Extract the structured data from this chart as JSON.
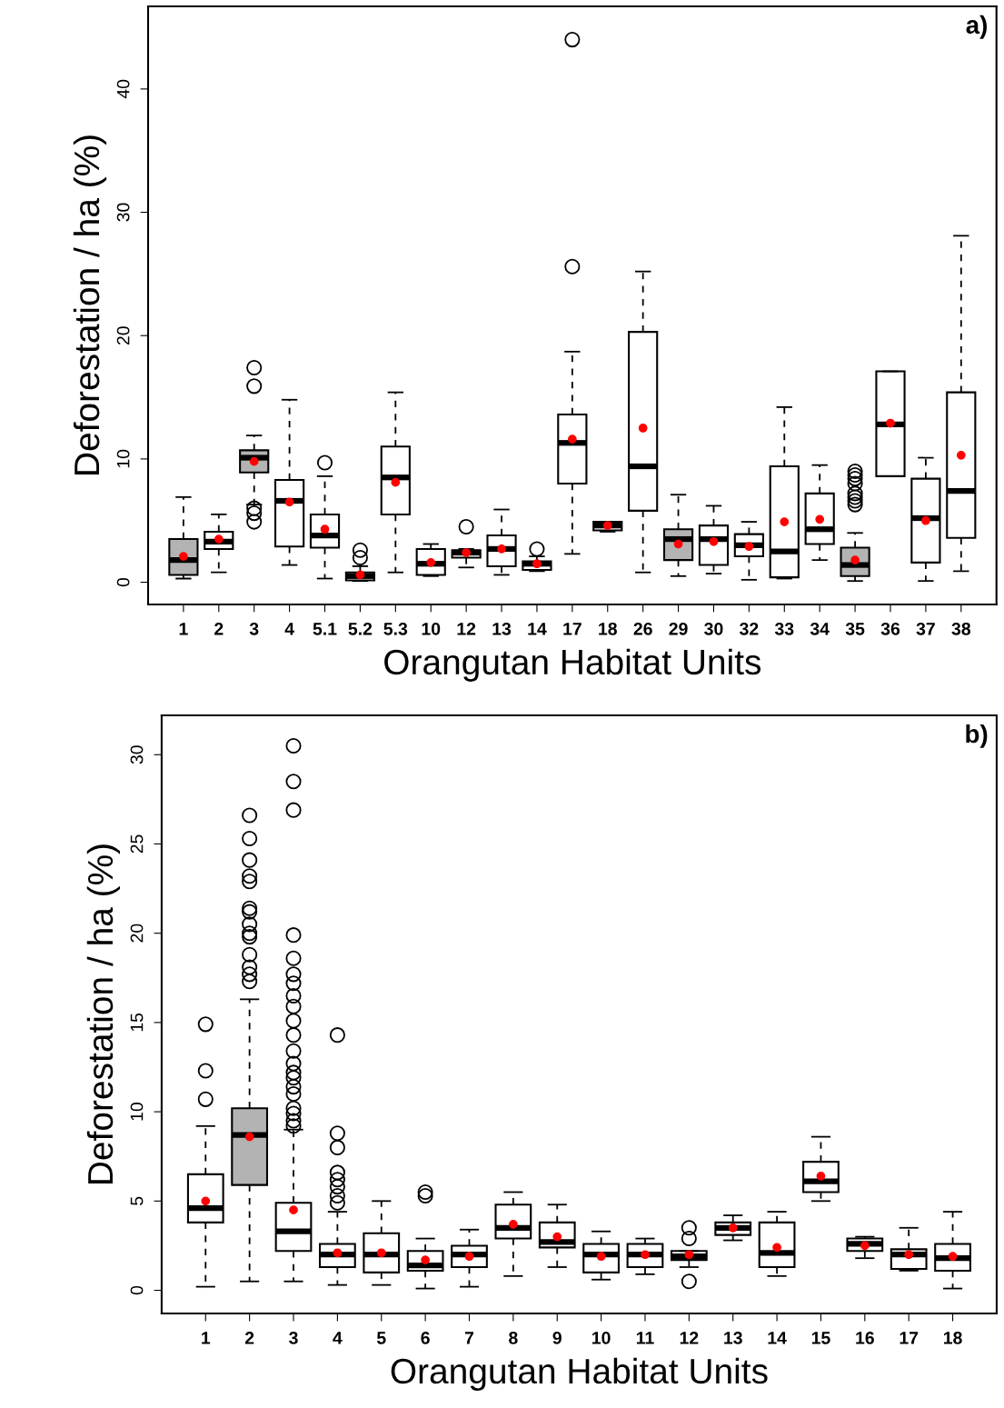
{
  "chart_data": [
    {
      "type": "box",
      "xlabel": "Orangutan Habitat Units",
      "ylabel": "Deforestation / ha (%)",
      "annotations": [
        "a)"
      ],
      "grid": false,
      "ylim": [
        -1.8,
        46.7
      ],
      "yticks": [
        0,
        10,
        20,
        30,
        40
      ],
      "categories": [
        "1",
        "2",
        "3",
        "4",
        "5.1",
        "5.2",
        "5.3",
        "10",
        "12",
        "13",
        "14",
        "17",
        "18",
        "26",
        "29",
        "30",
        "32",
        "33",
        "34",
        "35",
        "36",
        "37",
        "38"
      ],
      "colors": [
        "#b3b3b3",
        "#ffffff",
        "#b3b3b3",
        "#ffffff",
        "#ffffff",
        "#ffffff",
        "#ffffff",
        "#ffffff",
        "#ffffff",
        "#ffffff",
        "#ffffff",
        "#ffffff",
        "#ffffff",
        "#ffffff",
        "#b3b3b3",
        "#ffffff",
        "#ffffff",
        "#ffffff",
        "#ffffff",
        "#b3b3b3",
        "#ffffff",
        "#ffffff",
        "#ffffff"
      ],
      "boxes": [
        {
          "low": 0.3,
          "q1": 0.6,
          "median": 1.8,
          "q3": 3.5,
          "high": 6.9,
          "mean": 2.1
        },
        {
          "low": 0.8,
          "q1": 2.7,
          "median": 3.3,
          "q3": 4.1,
          "high": 5.5,
          "mean": 3.5
        },
        {
          "low": 6.3,
          "q1": 8.9,
          "median": 10.1,
          "q3": 10.7,
          "high": 11.9,
          "mean": 9.8,
          "outliers": [
            17.4,
            15.9,
            6.0,
            5.6,
            4.9
          ]
        },
        {
          "low": 1.4,
          "q1": 2.9,
          "median": 6.6,
          "q3": 8.3,
          "high": 14.8,
          "mean": 6.5
        },
        {
          "low": 0.3,
          "q1": 2.8,
          "median": 3.8,
          "q3": 5.5,
          "high": 8.6,
          "mean": 4.3,
          "outliers": [
            9.7
          ]
        },
        {
          "low": 0.1,
          "q1": 0.15,
          "median": 0.5,
          "q3": 0.8,
          "high": 1.3,
          "mean": 0.6,
          "outliers": [
            2.6,
            2.0
          ]
        },
        {
          "low": 0.8,
          "q1": 5.5,
          "median": 8.5,
          "q3": 11.0,
          "high": 15.4,
          "mean": 8.1
        },
        {
          "low": 0.5,
          "q1": 0.6,
          "median": 1.5,
          "q3": 2.7,
          "high": 3.1,
          "mean": 1.6
        },
        {
          "low": 1.2,
          "q1": 2.0,
          "median": 2.4,
          "q3": 2.6,
          "high": 2.7,
          "mean": 2.4,
          "outliers": [
            4.5
          ]
        },
        {
          "low": 0.6,
          "q1": 1.3,
          "median": 2.7,
          "q3": 3.8,
          "high": 5.9,
          "mean": 2.7
        },
        {
          "low": 0.9,
          "q1": 1.0,
          "median": 1.5,
          "q3": 1.7,
          "high": 2.1,
          "mean": 1.5,
          "outliers": [
            2.7
          ]
        },
        {
          "low": 2.3,
          "q1": 8.0,
          "median": 11.3,
          "q3": 13.6,
          "high": 18.7,
          "mean": 11.6,
          "outliers": [
            44.0,
            25.6
          ]
        },
        {
          "low": 4.1,
          "q1": 4.2,
          "median": 4.6,
          "q3": 4.9,
          "high": 4.9,
          "mean": 4.6
        },
        {
          "low": 0.8,
          "q1": 5.8,
          "median": 9.4,
          "q3": 20.3,
          "high": 25.2,
          "mean": 12.5
        },
        {
          "low": 0.5,
          "q1": 1.8,
          "median": 3.5,
          "q3": 4.3,
          "high": 7.1,
          "mean": 3.1
        },
        {
          "low": 0.7,
          "q1": 1.4,
          "median": 3.5,
          "q3": 4.6,
          "high": 6.2,
          "mean": 3.3
        },
        {
          "low": 0.2,
          "q1": 2.1,
          "median": 3.0,
          "q3": 3.9,
          "high": 4.9,
          "mean": 2.9
        },
        {
          "low": 0.3,
          "q1": 0.4,
          "median": 2.5,
          "q3": 9.4,
          "high": 14.2,
          "mean": 4.9
        },
        {
          "low": 1.8,
          "q1": 3.1,
          "median": 4.3,
          "q3": 7.2,
          "high": 9.5,
          "mean": 5.1
        },
        {
          "low": 0.1,
          "q1": 0.5,
          "median": 1.4,
          "q3": 2.8,
          "high": 4.0,
          "mean": 1.8,
          "outliers": [
            9.0,
            8.7,
            8.4,
            8.0,
            7.2,
            6.9,
            6.6,
            6.3
          ]
        },
        {
          "low": 8.6,
          "q1": 8.6,
          "median": 12.8,
          "q3": 17.1,
          "high": 17.1,
          "mean": 12.9
        },
        {
          "low": 0.1,
          "q1": 1.6,
          "median": 5.2,
          "q3": 8.4,
          "high": 10.1,
          "mean": 5.0
        },
        {
          "low": 0.9,
          "q1": 3.6,
          "median": 7.4,
          "q3": 15.4,
          "high": 28.1,
          "mean": 10.3
        }
      ]
    },
    {
      "type": "box",
      "xlabel": "Orangutan Habitat Units",
      "ylabel": "Deforestation / ha (%)",
      "annotations": [
        "b)"
      ],
      "grid": false,
      "ylim": [
        -1.3,
        32.2
      ],
      "yticks": [
        0,
        5,
        10,
        15,
        20,
        25,
        30
      ],
      "categories": [
        "1",
        "2",
        "3",
        "4",
        "5",
        "6",
        "7",
        "8",
        "9",
        "10",
        "11",
        "12",
        "13",
        "14",
        "15",
        "16",
        "17",
        "18"
      ],
      "colors": [
        "#ffffff",
        "#b3b3b3",
        "#ffffff",
        "#ffffff",
        "#ffffff",
        "#ffffff",
        "#ffffff",
        "#ffffff",
        "#ffffff",
        "#ffffff",
        "#ffffff",
        "#ffffff",
        "#ffffff",
        "#ffffff",
        "#ffffff",
        "#ffffff",
        "#ffffff",
        "#ffffff"
      ],
      "boxes": [
        {
          "low": 0.2,
          "q1": 3.8,
          "median": 4.6,
          "q3": 6.5,
          "high": 9.2,
          "mean": 5.0,
          "outliers": [
            14.9,
            12.3,
            10.7
          ]
        },
        {
          "low": 0.5,
          "q1": 5.9,
          "median": 8.7,
          "q3": 10.2,
          "high": 16.3,
          "mean": 8.6,
          "outliers": [
            26.6,
            25.3,
            24.1,
            23.2,
            22.9,
            21.4,
            21.2,
            20.5,
            20.0,
            19.8,
            18.8,
            18.1,
            17.7,
            17.3
          ]
        },
        {
          "low": 0.5,
          "q1": 2.2,
          "median": 3.3,
          "q3": 4.9,
          "high": 9.0,
          "mean": 4.5,
          "outliers": [
            30.5,
            28.5,
            26.9,
            19.9,
            18.6,
            17.7,
            17.2,
            16.5,
            15.9,
            15.1,
            14.3,
            13.4,
            12.7,
            12.2,
            11.9,
            11.4,
            11.0,
            10.2,
            9.9,
            9.5,
            9.2
          ]
        },
        {
          "low": 0.3,
          "q1": 1.3,
          "median": 2.0,
          "q3": 2.6,
          "high": 4.4,
          "mean": 2.1,
          "outliers": [
            14.3,
            8.8,
            8.0,
            6.6,
            6.2,
            5.8,
            5.3,
            4.9
          ]
        },
        {
          "low": 0.3,
          "q1": 1.0,
          "median": 2.0,
          "q3": 3.2,
          "high": 5.0,
          "mean": 2.1
        },
        {
          "low": 0.1,
          "q1": 1.1,
          "median": 1.4,
          "q3": 2.2,
          "high": 2.9,
          "mean": 1.7,
          "outliers": [
            5.5,
            5.3
          ]
        },
        {
          "low": 0.2,
          "q1": 1.3,
          "median": 2.0,
          "q3": 2.5,
          "high": 3.4,
          "mean": 1.9
        },
        {
          "low": 0.8,
          "q1": 2.9,
          "median": 3.5,
          "q3": 4.8,
          "high": 5.5,
          "mean": 3.7
        },
        {
          "low": 1.3,
          "q1": 2.4,
          "median": 2.7,
          "q3": 3.8,
          "high": 4.8,
          "mean": 3.0
        },
        {
          "low": 0.6,
          "q1": 1.0,
          "median": 2.0,
          "q3": 2.6,
          "high": 3.3,
          "mean": 1.9
        },
        {
          "low": 0.9,
          "q1": 1.3,
          "median": 2.0,
          "q3": 2.6,
          "high": 2.9,
          "mean": 2.0
        },
        {
          "low": 1.3,
          "q1": 1.7,
          "median": 1.9,
          "q3": 2.2,
          "high": 2.2,
          "mean": 2.0,
          "outliers": [
            3.5,
            2.9,
            0.5
          ]
        },
        {
          "low": 2.8,
          "q1": 3.1,
          "median": 3.5,
          "q3": 3.8,
          "high": 4.2,
          "mean": 3.5
        },
        {
          "low": 0.8,
          "q1": 1.3,
          "median": 2.1,
          "q3": 3.8,
          "high": 4.4,
          "mean": 2.4
        },
        {
          "low": 5.0,
          "q1": 5.5,
          "median": 6.1,
          "q3": 7.2,
          "high": 8.6,
          "mean": 6.4
        },
        {
          "low": 1.8,
          "q1": 2.2,
          "median": 2.6,
          "q3": 2.9,
          "high": 3.0,
          "mean": 2.5
        },
        {
          "low": 1.1,
          "q1": 1.2,
          "median": 2.0,
          "q3": 2.3,
          "high": 3.5,
          "mean": 2.0
        },
        {
          "low": 0.1,
          "q1": 1.1,
          "median": 1.8,
          "q3": 2.6,
          "high": 4.4,
          "mean": 1.9
        }
      ]
    }
  ]
}
